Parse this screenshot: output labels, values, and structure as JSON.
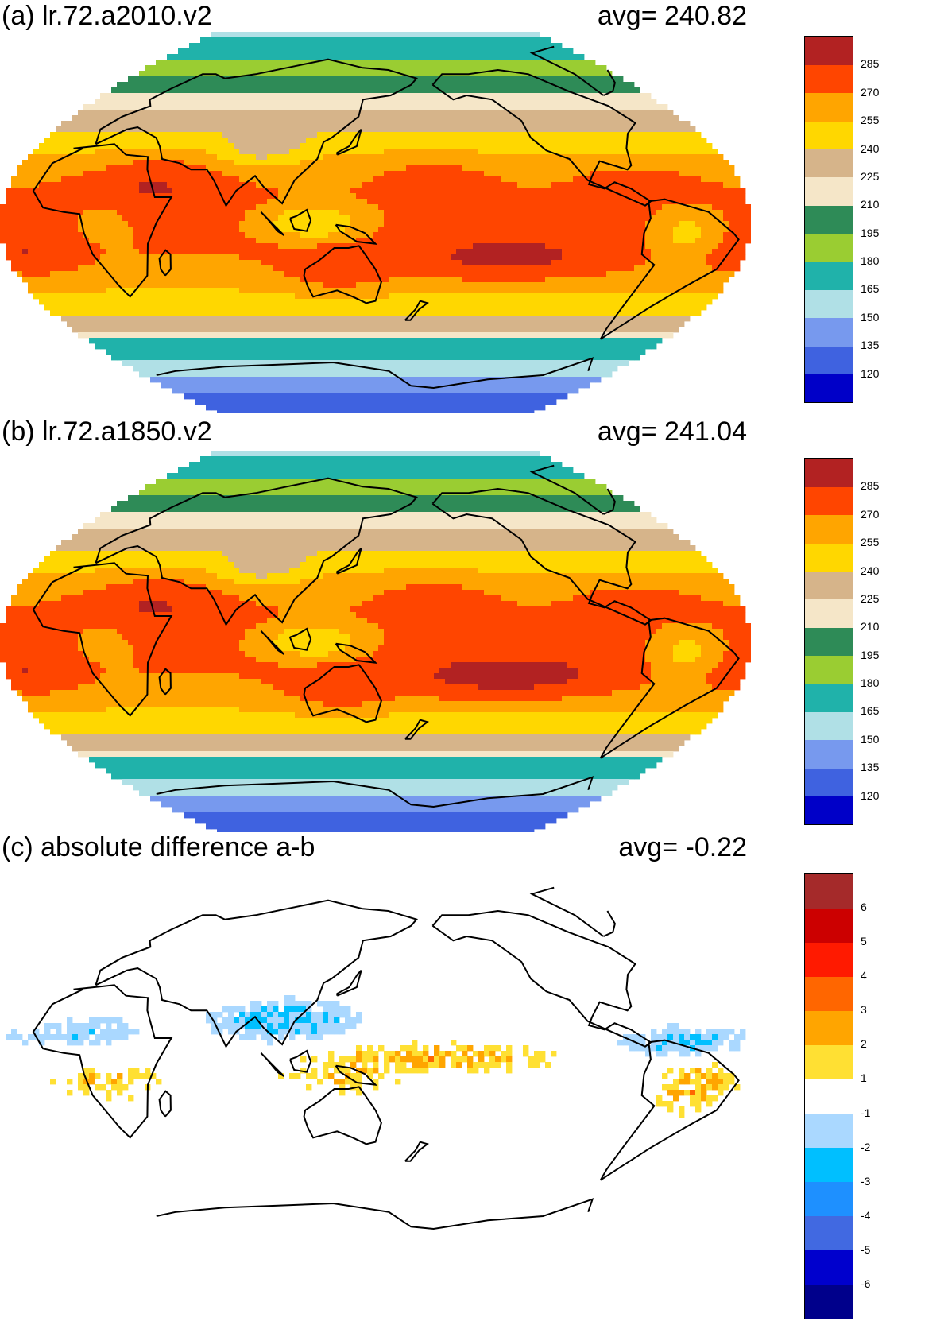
{
  "panels": [
    {
      "label": "(a) lr.72.a2010.v2",
      "avg_label": "avg=  240.82",
      "colorbar": {
        "colors": [
          "#0000c8",
          "#3f62e0",
          "#7799ee",
          "#b0e0e6",
          "#20b2aa",
          "#9acd32",
          "#2e8b57",
          "#f5e6c8",
          "#d6b48a",
          "#ffd700",
          "#ffa500",
          "#ff4500",
          "#b22222"
        ],
        "labels": [
          "120",
          "135",
          "150",
          "165",
          "180",
          "195",
          "210",
          "225",
          "240",
          "255",
          "270",
          "285"
        ]
      }
    },
    {
      "label": "(b) lr.72.a1850.v2",
      "avg_label": "avg=  241.04",
      "colorbar": {
        "colors": [
          "#0000c8",
          "#3f62e0",
          "#7799ee",
          "#b0e0e6",
          "#20b2aa",
          "#9acd32",
          "#2e8b57",
          "#f5e6c8",
          "#d6b48a",
          "#ffd700",
          "#ffa500",
          "#ff4500",
          "#b22222"
        ],
        "labels": [
          "120",
          "135",
          "150",
          "165",
          "180",
          "195",
          "210",
          "225",
          "240",
          "255",
          "270",
          "285"
        ]
      }
    },
    {
      "label": "(c) absolute difference a-b",
      "avg_label": "avg=   -0.22",
      "colorbar": {
        "colors": [
          "#00008b",
          "#0000cd",
          "#4169e1",
          "#1e90ff",
          "#00bfff",
          "#aad8ff",
          "#ffffff",
          "#ffe033",
          "#ffa500",
          "#ff6600",
          "#ff1a00",
          "#cc0000",
          "#a52a2a"
        ],
        "labels": [
          "-6",
          "-5",
          "-4",
          "-3",
          "-2",
          "-1",
          "1",
          "2",
          "3",
          "4",
          "5",
          "6"
        ]
      }
    }
  ]
}
